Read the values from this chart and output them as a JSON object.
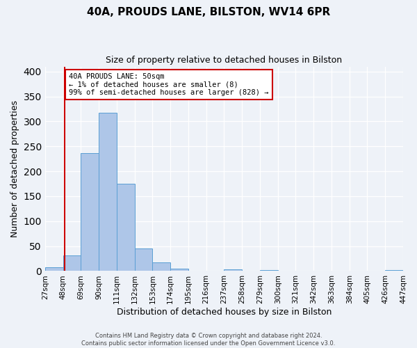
{
  "title": "40A, PROUDS LANE, BILSTON, WV14 6PR",
  "subtitle": "Size of property relative to detached houses in Bilston",
  "xlabel": "Distribution of detached houses by size in Bilston",
  "ylabel": "Number of detached properties",
  "bin_edges": [
    27,
    48,
    69,
    90,
    111,
    132,
    153,
    174,
    195,
    216,
    237,
    258,
    279,
    300,
    321,
    342,
    363,
    384,
    405,
    426,
    447
  ],
  "bar_heights": [
    8,
    32,
    237,
    318,
    175,
    45,
    17,
    5,
    0,
    0,
    3,
    0,
    2,
    0,
    0,
    0,
    0,
    0,
    0,
    2
  ],
  "bar_color": "#aec6e8",
  "bar_edge_color": "#5a9fd4",
  "property_line_x": 50,
  "property_line_color": "#cc0000",
  "annotation_text": "40A PROUDS LANE: 50sqm\n← 1% of detached houses are smaller (8)\n99% of semi-detached houses are larger (828) →",
  "annotation_box_color": "#ffffff",
  "annotation_box_edge_color": "#cc0000",
  "ylim": [
    0,
    410
  ],
  "footer_line1": "Contains HM Land Registry data © Crown copyright and database right 2024.",
  "footer_line2": "Contains public sector information licensed under the Open Government Licence v3.0.",
  "background_color": "#eef2f8",
  "grid_color": "#ffffff",
  "title_fontsize": 11,
  "subtitle_fontsize": 9,
  "tick_labels": [
    "27sqm",
    "48sqm",
    "69sqm",
    "90sqm",
    "111sqm",
    "132sqm",
    "153sqm",
    "174sqm",
    "195sqm",
    "216sqm",
    "237sqm",
    "258sqm",
    "279sqm",
    "300sqm",
    "321sqm",
    "342sqm",
    "363sqm",
    "384sqm",
    "405sqm",
    "426sqm",
    "447sqm"
  ]
}
